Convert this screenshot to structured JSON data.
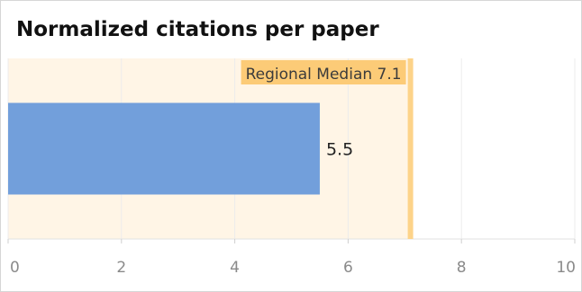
{
  "title": "Normalized citations per paper",
  "colors": {
    "bar": "#729fdb",
    "reference_band": "#fff5e6",
    "reference_line": "#fdd389",
    "reference_label_bg": "#fccb77",
    "grid": "#ececec"
  },
  "chart_data": {
    "type": "bar",
    "orientation": "horizontal",
    "title": "Normalized citations per paper",
    "categories": [
      ""
    ],
    "values": [
      5.5
    ],
    "data_labels": [
      "5.5"
    ],
    "xlim": [
      0,
      10
    ],
    "x_ticks": [
      "0",
      "2",
      "4",
      "6",
      "8",
      "10"
    ],
    "grid": true,
    "reference": {
      "label": "Regional Median 7.1",
      "value": 7.1
    }
  }
}
